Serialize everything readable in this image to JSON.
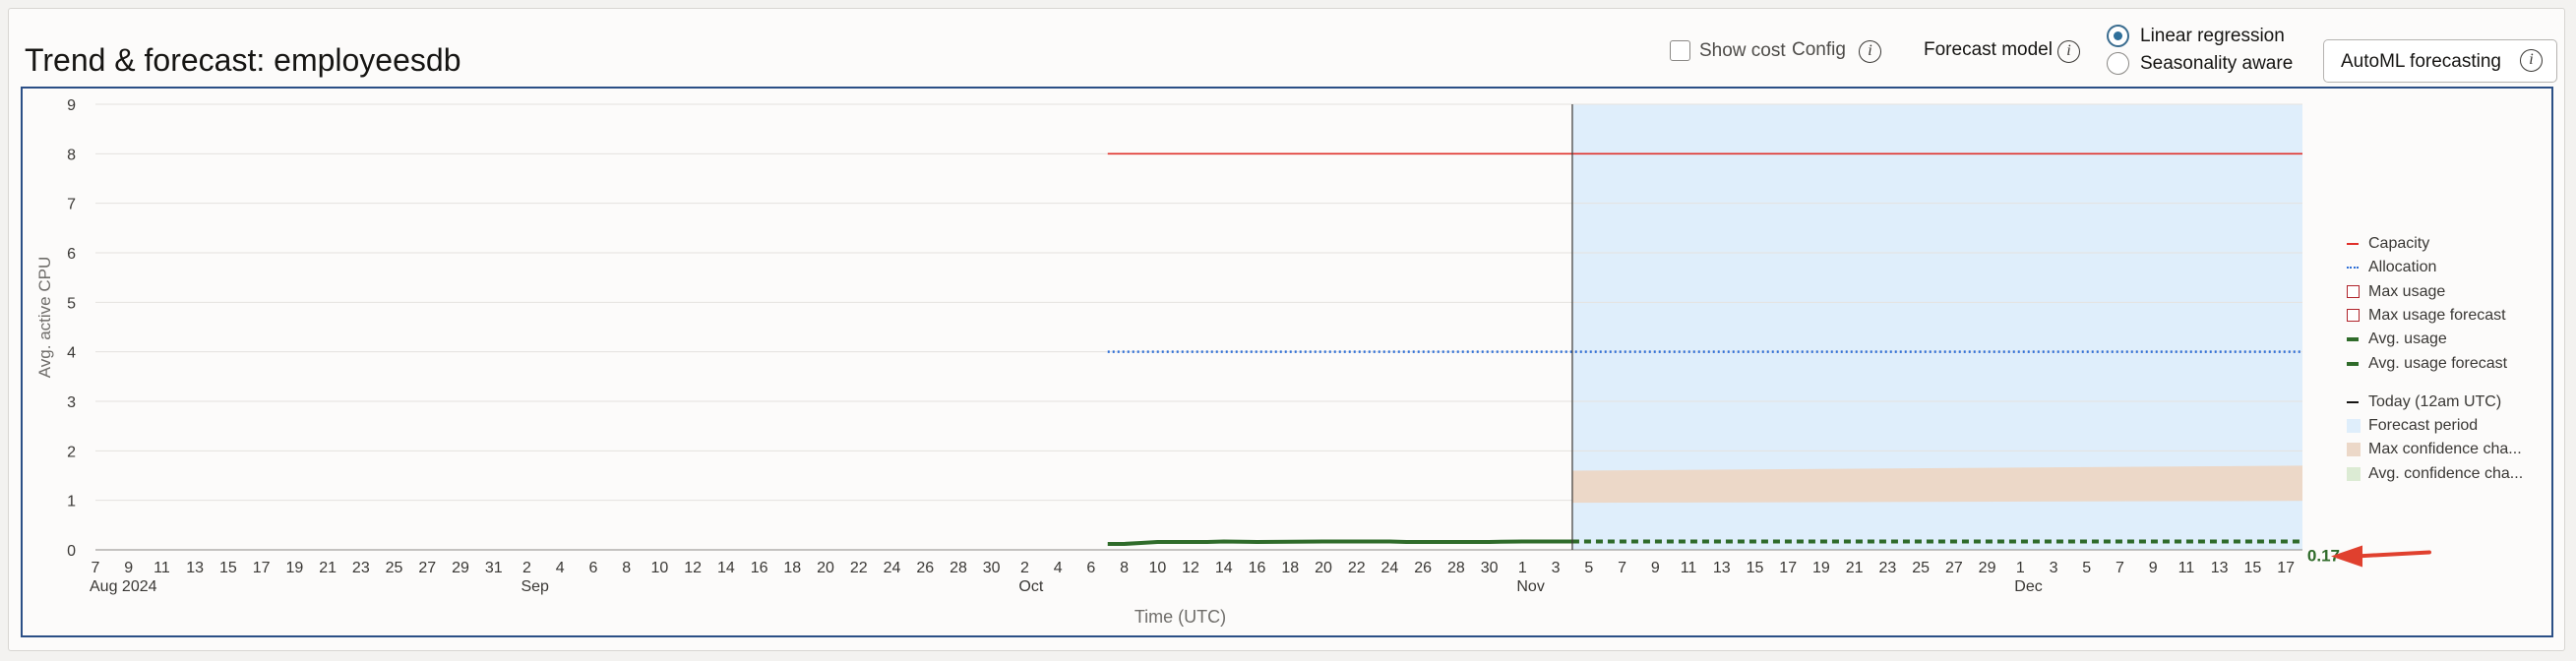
{
  "header": {
    "title": "Trend & forecast: employeesdb",
    "show_cost_label": "Show cost",
    "config_label": "Config",
    "forecast_model_label": "Forecast model",
    "forecast_models": [
      "Linear regression",
      "Seasonality aware"
    ],
    "selected_model": "Linear regression",
    "automl_button_label": "AutoML forecasting",
    "info_glyph": "i"
  },
  "chart_data": {
    "type": "line",
    "ylabel": "Avg. active CPU",
    "xlabel": "Time (UTC)",
    "ylim": [
      0,
      9
    ],
    "y_ticks": [
      0,
      1,
      2,
      3,
      4,
      5,
      6,
      7,
      8,
      9
    ],
    "x_range": [
      "2024-08-07",
      "2024-12-18"
    ],
    "x_tick_labels": [
      {
        "date": "2024-08-07",
        "day": "7",
        "month": "Aug 2024"
      },
      {
        "date": "2024-08-09",
        "day": "9"
      },
      {
        "date": "2024-08-11",
        "day": "11"
      },
      {
        "date": "2024-08-13",
        "day": "13"
      },
      {
        "date": "2024-08-15",
        "day": "15"
      },
      {
        "date": "2024-08-17",
        "day": "17"
      },
      {
        "date": "2024-08-19",
        "day": "19"
      },
      {
        "date": "2024-08-21",
        "day": "21"
      },
      {
        "date": "2024-08-23",
        "day": "23"
      },
      {
        "date": "2024-08-25",
        "day": "25"
      },
      {
        "date": "2024-08-27",
        "day": "27"
      },
      {
        "date": "2024-08-29",
        "day": "29"
      },
      {
        "date": "2024-08-31",
        "day": "31"
      },
      {
        "date": "2024-09-02",
        "day": "2",
        "month": "Sep"
      },
      {
        "date": "2024-09-04",
        "day": "4"
      },
      {
        "date": "2024-09-06",
        "day": "6"
      },
      {
        "date": "2024-09-08",
        "day": "8"
      },
      {
        "date": "2024-09-10",
        "day": "10"
      },
      {
        "date": "2024-09-12",
        "day": "12"
      },
      {
        "date": "2024-09-14",
        "day": "14"
      },
      {
        "date": "2024-09-16",
        "day": "16"
      },
      {
        "date": "2024-09-18",
        "day": "18"
      },
      {
        "date": "2024-09-20",
        "day": "20"
      },
      {
        "date": "2024-09-22",
        "day": "22"
      },
      {
        "date": "2024-09-24",
        "day": "24"
      },
      {
        "date": "2024-09-26",
        "day": "26"
      },
      {
        "date": "2024-09-28",
        "day": "28"
      },
      {
        "date": "2024-09-30",
        "day": "30"
      },
      {
        "date": "2024-10-02",
        "day": "2",
        "month": "Oct"
      },
      {
        "date": "2024-10-04",
        "day": "4"
      },
      {
        "date": "2024-10-06",
        "day": "6"
      },
      {
        "date": "2024-10-08",
        "day": "8"
      },
      {
        "date": "2024-10-10",
        "day": "10"
      },
      {
        "date": "2024-10-12",
        "day": "12"
      },
      {
        "date": "2024-10-14",
        "day": "14"
      },
      {
        "date": "2024-10-16",
        "day": "16"
      },
      {
        "date": "2024-10-18",
        "day": "18"
      },
      {
        "date": "2024-10-20",
        "day": "20"
      },
      {
        "date": "2024-10-22",
        "day": "22"
      },
      {
        "date": "2024-10-24",
        "day": "24"
      },
      {
        "date": "2024-10-26",
        "day": "26"
      },
      {
        "date": "2024-10-28",
        "day": "28"
      },
      {
        "date": "2024-10-30",
        "day": "30"
      },
      {
        "date": "2024-11-01",
        "day": "1",
        "month": "Nov"
      },
      {
        "date": "2024-11-03",
        "day": "3"
      },
      {
        "date": "2024-11-05",
        "day": "5"
      },
      {
        "date": "2024-11-07",
        "day": "7"
      },
      {
        "date": "2024-11-09",
        "day": "9"
      },
      {
        "date": "2024-11-11",
        "day": "11"
      },
      {
        "date": "2024-11-13",
        "day": "13"
      },
      {
        "date": "2024-11-15",
        "day": "15"
      },
      {
        "date": "2024-11-17",
        "day": "17"
      },
      {
        "date": "2024-11-19",
        "day": "19"
      },
      {
        "date": "2024-11-21",
        "day": "21"
      },
      {
        "date": "2024-11-23",
        "day": "23"
      },
      {
        "date": "2024-11-25",
        "day": "25"
      },
      {
        "date": "2024-11-27",
        "day": "27"
      },
      {
        "date": "2024-11-29",
        "day": "29"
      },
      {
        "date": "2024-12-01",
        "day": "1",
        "month": "Dec"
      },
      {
        "date": "2024-12-03",
        "day": "3"
      },
      {
        "date": "2024-12-05",
        "day": "5"
      },
      {
        "date": "2024-12-07",
        "day": "7"
      },
      {
        "date": "2024-12-09",
        "day": "9"
      },
      {
        "date": "2024-12-11",
        "day": "11"
      },
      {
        "date": "2024-12-13",
        "day": "13"
      },
      {
        "date": "2024-12-15",
        "day": "15"
      },
      {
        "date": "2024-12-17",
        "day": "17"
      }
    ],
    "grid": true,
    "today": "2024-11-04",
    "forecast_period": [
      "2024-11-04",
      "2024-12-18"
    ],
    "series": [
      {
        "name": "Capacity",
        "style": "solid",
        "color": "#e0302a",
        "points": [
          [
            "2024-10-07",
            8
          ],
          [
            "2024-12-18",
            8
          ]
        ]
      },
      {
        "name": "Allocation",
        "style": "dotted",
        "color": "#2f6fd6",
        "points": [
          [
            "2024-10-07",
            4
          ],
          [
            "2024-12-18",
            4
          ]
        ]
      },
      {
        "name": "Avg. usage",
        "style": "solid",
        "color": "#2f6b2a",
        "points": [
          [
            "2024-10-07",
            0.12
          ],
          [
            "2024-10-08",
            0.12
          ],
          [
            "2024-10-09",
            0.14
          ],
          [
            "2024-10-10",
            0.16
          ],
          [
            "2024-10-13",
            0.16
          ],
          [
            "2024-10-14",
            0.17
          ],
          [
            "2024-10-16",
            0.16
          ],
          [
            "2024-10-20",
            0.17
          ],
          [
            "2024-10-24",
            0.17
          ],
          [
            "2024-10-25",
            0.16
          ],
          [
            "2024-10-30",
            0.16
          ],
          [
            "2024-11-01",
            0.17
          ],
          [
            "2024-11-04",
            0.17
          ]
        ]
      },
      {
        "name": "Avg. usage forecast",
        "style": "dashed",
        "color": "#2f6b2a",
        "points": [
          [
            "2024-11-04",
            0.17
          ],
          [
            "2024-12-18",
            0.17
          ]
        ]
      }
    ],
    "max_confidence_band": {
      "name": "Max confidence channel",
      "from": "2024-11-04",
      "to": "2024-12-18",
      "lower": [
        0.95,
        0.99
      ],
      "upper": [
        1.6,
        1.7
      ],
      "color": "#ecd8c8"
    },
    "annotation": {
      "value_label": "0.17",
      "color": "#2f6b2a",
      "arrow_color": "#e0402e"
    },
    "legend": {
      "placement": "right",
      "items": [
        {
          "label": "Capacity",
          "kind": "line-solid",
          "color": "#e0302a"
        },
        {
          "label": "Allocation",
          "kind": "line-dotted",
          "color": "#2f6fd6"
        },
        {
          "label": "Max usage",
          "kind": "box-outline",
          "color": "#b0232a"
        },
        {
          "label": "Max usage forecast",
          "kind": "box-outline",
          "color": "#b0232a"
        },
        {
          "label": "Avg. usage",
          "kind": "line-thick",
          "color": "#2f6b2a"
        },
        {
          "label": "Avg. usage forecast",
          "kind": "line-dashed",
          "color": "#2f6b2a"
        },
        {
          "label": "Today (12am UTC)",
          "kind": "line-solid",
          "color": "#161513"
        },
        {
          "label": "Forecast period",
          "kind": "swatch",
          "color": "#dfeefb"
        },
        {
          "label": "Max confidence cha...",
          "kind": "swatch",
          "color": "#ecd8c8"
        },
        {
          "label": "Avg. confidence cha...",
          "kind": "swatch",
          "color": "#dcebd4"
        }
      ]
    }
  }
}
